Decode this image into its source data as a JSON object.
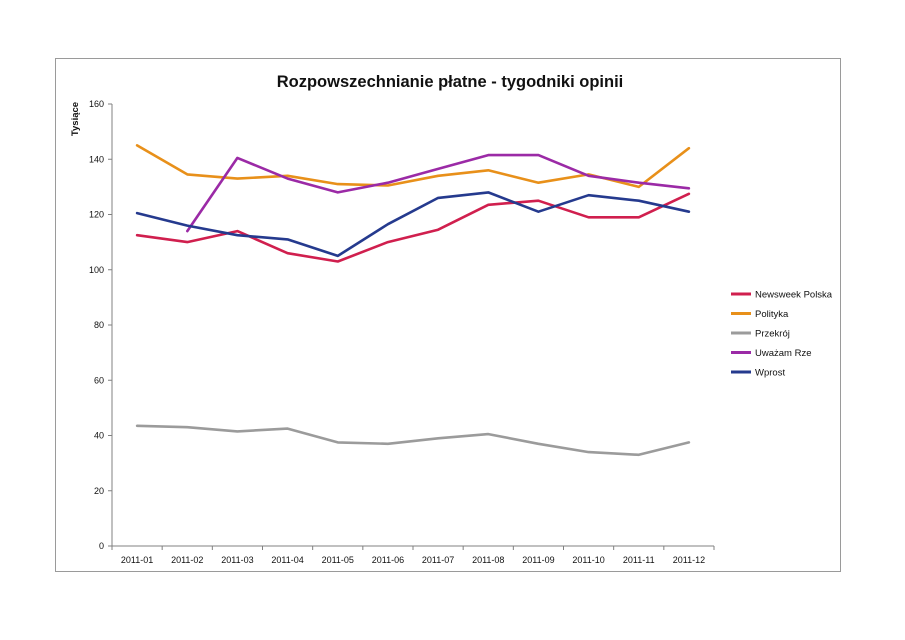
{
  "chart_data": {
    "type": "line",
    "title": "Rozpowszechnianie płatne - tygodniki opinii",
    "xlabel": "",
    "ylabel": "Tysiące",
    "ylim": [
      0,
      160
    ],
    "yticks": [
      0,
      20,
      40,
      60,
      80,
      100,
      120,
      140,
      160
    ],
    "categories": [
      "2011-01",
      "2011-02",
      "2011-03",
      "2011-04",
      "2011-05",
      "2011-06",
      "2011-07",
      "2011-08",
      "2011-09",
      "2011-10",
      "2011-11",
      "2011-12"
    ],
    "legend_position": "right",
    "series": [
      {
        "name": "Newsweek Polska",
        "color": "#d01f4e",
        "values": [
          112.5,
          110,
          114,
          106,
          103,
          110,
          114.5,
          123.5,
          125,
          119,
          119,
          127.5
        ]
      },
      {
        "name": "Polityka",
        "color": "#e8901a",
        "values": [
          145,
          134.5,
          133,
          134,
          131,
          130.5,
          134,
          136,
          131.5,
          134.5,
          130,
          144
        ]
      },
      {
        "name": "Przekrój",
        "color": "#9b9b9b",
        "values": [
          43.5,
          43,
          41.5,
          42.5,
          37.5,
          37,
          39,
          40.5,
          37,
          34,
          33,
          37.5
        ]
      },
      {
        "name": "Uważam Rze",
        "color": "#9b2aa6",
        "values": [
          null,
          114,
          140.5,
          133,
          128,
          131.5,
          136.5,
          141.5,
          141.5,
          134,
          131.5,
          129.5
        ]
      },
      {
        "name": "Wprost",
        "color": "#253a8e",
        "values": [
          120.5,
          116,
          112.5,
          111,
          105,
          116.5,
          126,
          128,
          121,
          127,
          125,
          121
        ]
      }
    ]
  }
}
